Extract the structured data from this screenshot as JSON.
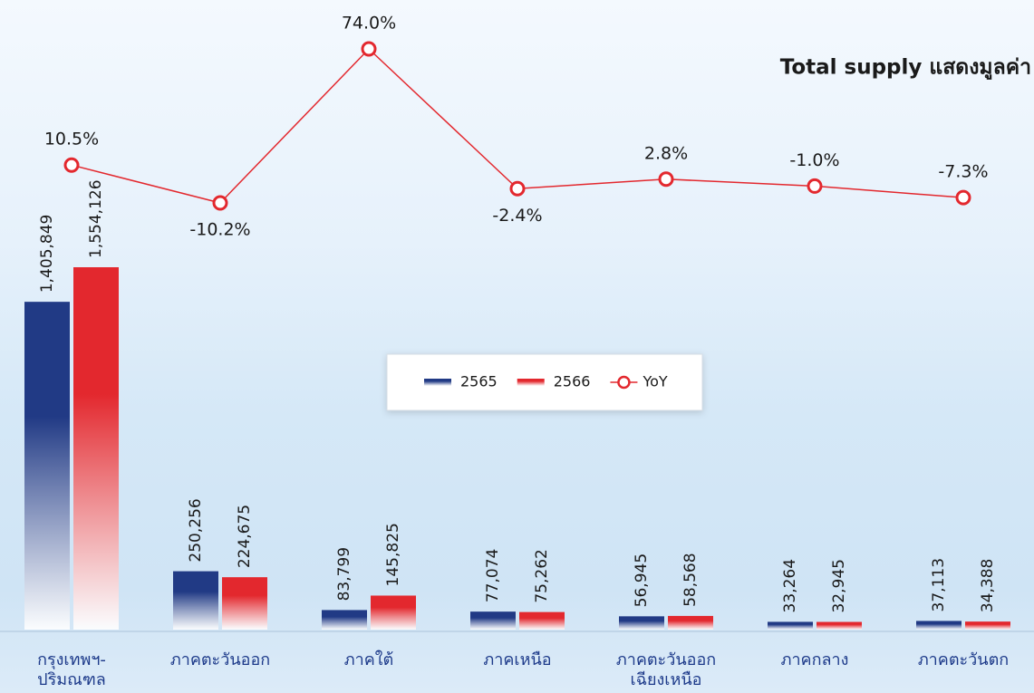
{
  "chart_data": {
    "type": "bar-line",
    "title": "Total supply แสดงมูลค่า",
    "categories": [
      "กรุงเทพฯ-\nปริมณฑล",
      "ภาคตะวันออก",
      "ภาคใต้",
      "ภาคเหนือ",
      "ภาคตะวันออก\nเฉียงเหนือ",
      "ภาคกลาง",
      "ภาคตะวันตก"
    ],
    "series": [
      {
        "name": "2565",
        "color": "#213a85",
        "type": "bar",
        "values": [
          1405849,
          250256,
          83799,
          77074,
          56945,
          33264,
          37113
        ],
        "value_labels": [
          "1,405,849",
          "250,256",
          "83,799",
          "77,074",
          "56,945",
          "33,264",
          "37,113"
        ]
      },
      {
        "name": "2566",
        "color": "#e3282e",
        "type": "bar",
        "values": [
          1554126,
          224675,
          145825,
          75262,
          58568,
          32945,
          34388
        ],
        "value_labels": [
          "1,554,126",
          "224,675",
          "145,825",
          "75,262",
          "58,568",
          "32,945",
          "34,388"
        ]
      },
      {
        "name": "YoY",
        "color": "#e3282e",
        "type": "line",
        "values": [
          10.5,
          -10.2,
          74.0,
          -2.4,
          2.8,
          -1.0,
          -7.3
        ],
        "value_labels": [
          "10.5%",
          "-10.2%",
          "74.0%",
          "-2.4%",
          "2.8%",
          "-1.0%",
          "-7.3%"
        ]
      }
    ]
  }
}
